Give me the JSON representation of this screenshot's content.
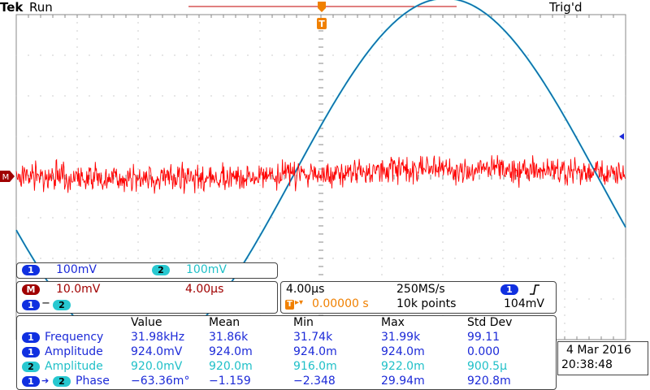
{
  "header": {
    "brand": "Tek",
    "run_state": "Run",
    "trigger_state": "Trig'd"
  },
  "colors": {
    "ch1": "#1c2ad8",
    "ch2": "#20c0c8",
    "math": "#a00000",
    "trigger": "#f08000",
    "trace_red": "#ff0000",
    "trace_cyan": "#30c0c8"
  },
  "markers": {
    "trigger_label": "T",
    "math_marker": "M"
  },
  "channel_scales": {
    "ch1_num": "1",
    "ch1_scale": "100mV",
    "ch2_num": "2",
    "ch2_scale": "100mV"
  },
  "math": {
    "label": "M",
    "scale": "10.0mV",
    "time": "4.00µs",
    "src1": "1",
    "op": "−",
    "src2": "2"
  },
  "timebase": {
    "horizontal": "4.00µs",
    "sample_rate": "250MS/s",
    "trig_label": "T",
    "trig_arrow": "▸▾",
    "trig_position": "0.00000 s",
    "record_length": "10k points",
    "trig_channel": "1",
    "trig_slope_icon": "rising-edge",
    "trig_level": "104mV"
  },
  "measurements": {
    "headers": [
      "Value",
      "Mean",
      "Min",
      "Max",
      "Std Dev"
    ],
    "rows": [
      {
        "src": "1",
        "src2": "",
        "name": "Frequency",
        "value": "31.98kHz",
        "mean": "31.86k",
        "min": "31.74k",
        "max": "31.99k",
        "std": "99.11"
      },
      {
        "src": "1",
        "src2": "",
        "name": "Amplitude",
        "value": "924.0mV",
        "mean": "924.0m",
        "min": "924.0m",
        "max": "924.0m",
        "std": "0.000"
      },
      {
        "src": "2",
        "src2": "",
        "name": "Amplitude",
        "value": "920.0mV",
        "mean": "920.0m",
        "min": "916.0m",
        "max": "922.0m",
        "std": "900.5µ"
      },
      {
        "src": "1",
        "src2": "2",
        "name": "Phase",
        "value": "−63.36m°",
        "mean": "−1.159",
        "min": "−2.348",
        "max": "29.94m",
        "std": "920.8m"
      }
    ]
  },
  "datetime": {
    "date": "4 Mar  2016",
    "time": "20:38:48"
  }
}
